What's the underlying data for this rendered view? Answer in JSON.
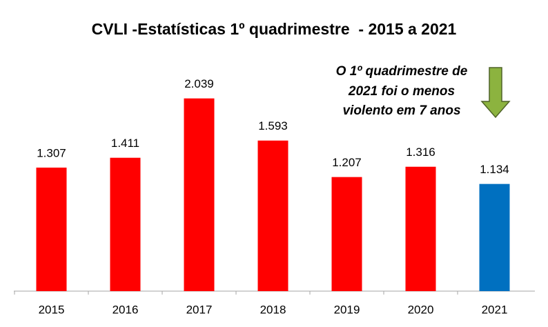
{
  "chart_data": {
    "type": "bar",
    "title": "CVLI -Estatísticas 1º quadrimestre  - 2015 a 2021",
    "categories": [
      "2015",
      "2016",
      "2017",
      "2018",
      "2019",
      "2020",
      "2021"
    ],
    "values": [
      1307,
      1411,
      2039,
      1593,
      1207,
      1316,
      1134
    ],
    "value_labels": [
      "1.307",
      "1.411",
      "2.039",
      "1.593",
      "1.207",
      "1.316",
      "1.134"
    ],
    "colors": [
      "#ff0000",
      "#ff0000",
      "#ff0000",
      "#ff0000",
      "#ff0000",
      "#ff0000",
      "#0070c0"
    ],
    "annotation": [
      "O 1º quadrimestre de",
      "2021 foi o menos",
      "violento em 7 anos"
    ]
  }
}
